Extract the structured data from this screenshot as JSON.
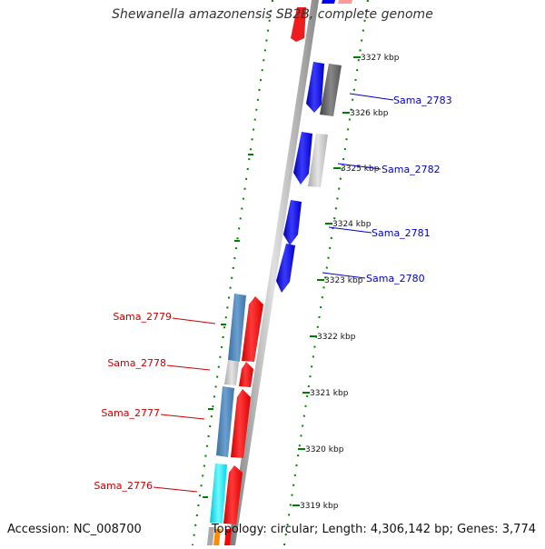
{
  "title": "Shewanella amazonensis SB2B, complete genome",
  "footer": {
    "accession": "Accession: NC_008700",
    "summary": "Topology: circular; Length: 4,306,142 bp; Genes: 3,774"
  },
  "colors": {
    "forward_cds": "#ff0000",
    "reverse_cds": "#0000ff",
    "forward_label": "#cc0000",
    "reverse_label": "#0000cc",
    "backbone": "#999999",
    "tick": "#008000"
  },
  "kbp_ticks": [
    "3327 kbp",
    "3326 kbp",
    "3325 kbp",
    "3324 kbp",
    "3323 kbp",
    "3322 kbp",
    "3321 kbp",
    "3320 kbp",
    "3319 kbp"
  ],
  "gene_labels": [
    {
      "text": "Sama_2783",
      "strand": "reverse"
    },
    {
      "text": "Sama_2782",
      "strand": "reverse"
    },
    {
      "text": "Sama_2781",
      "strand": "reverse"
    },
    {
      "text": "Sama_2780",
      "strand": "reverse"
    },
    {
      "text": "Sama_2779",
      "strand": "forward"
    },
    {
      "text": "Sama_2778",
      "strand": "forward"
    },
    {
      "text": "Sama_2777",
      "strand": "forward"
    },
    {
      "text": "Sama_2776",
      "strand": "forward"
    }
  ]
}
